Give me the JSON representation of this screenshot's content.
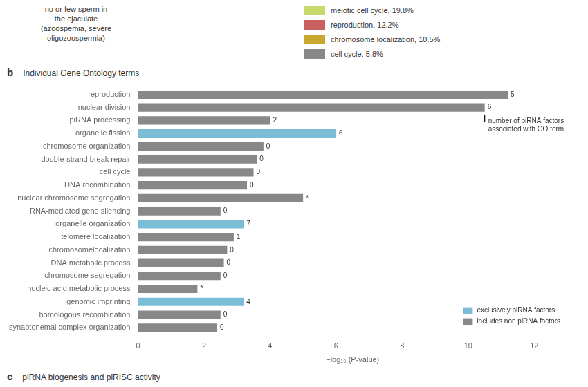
{
  "chart_data": {
    "type": "bar",
    "orientation": "horizontal",
    "panel_label": "b",
    "title": "Individual Gene Ontology terms",
    "subtitle": "no or few sperm in\nthe ejaculate\n(azoospemia, severe\noligozoospermia)",
    "top_legend": [
      {
        "name": "meiotic cell cycle, 19.8%",
        "color": "#c8d96b"
      },
      {
        "name": "reproduction, 12.2%",
        "color": "#c95f5f"
      },
      {
        "name": "chromosome localization, 10.5%",
        "color": "#c8a830"
      },
      {
        "name": "cell cycle, 5.8%",
        "color": "#888888"
      }
    ],
    "categories": [
      "reproduction",
      "nuclear division",
      "piRNA processing",
      "organelle fission",
      "chromosome organization",
      "double-strand break repair",
      "cell cycle",
      "DNA recombination",
      "nuclear chromosome segregation",
      "RNA-mediated gene silencing",
      "organelle organization",
      "telomere localization",
      "chromosomelocalization",
      "DNA metabolic process",
      "chromosome segregation",
      "nucleic acid metabolic process",
      "genomic imprinting",
      "homologous recombination",
      "synaptonemal complex organization"
    ],
    "values": [
      11.2,
      10.5,
      4.0,
      6.0,
      3.8,
      3.6,
      3.5,
      3.3,
      5.0,
      2.5,
      3.2,
      2.9,
      2.7,
      2.6,
      2.5,
      1.8,
      3.2,
      2.5,
      2.4
    ],
    "colors": [
      "#888888",
      "#888888",
      "#888888",
      "#7bbdd6",
      "#888888",
      "#888888",
      "#888888",
      "#888888",
      "#888888",
      "#888888",
      "#7bbdd6",
      "#888888",
      "#888888",
      "#888888",
      "#888888",
      "#888888",
      "#7bbdd6",
      "#888888",
      "#888888"
    ],
    "annotations": [
      "5",
      "6",
      "2",
      "6",
      "0",
      "0",
      "0",
      "0",
      "*",
      "0",
      "7",
      "1",
      "0",
      "0",
      "0",
      "*",
      "4",
      "0",
      "0"
    ],
    "marker_line": {
      "x": 10.5,
      "category": "piRNA processing",
      "label": "number of piRNA factors\nassociated with GO term"
    },
    "x_label": "−log₁₀ (P-value)",
    "xlim": [
      0,
      13
    ],
    "xticks": [
      0,
      2,
      4,
      6,
      8,
      10,
      12
    ],
    "grid": false,
    "legend": "lower right",
    "legend_items": [
      {
        "name": "exclusively piRNA factors",
        "color": "#7bbdd6"
      },
      {
        "name": "includes non piRNA factors",
        "color": "#888888"
      }
    ],
    "footer_label": "c",
    "footer": "piRNA biogenesis and piRISC activity"
  }
}
